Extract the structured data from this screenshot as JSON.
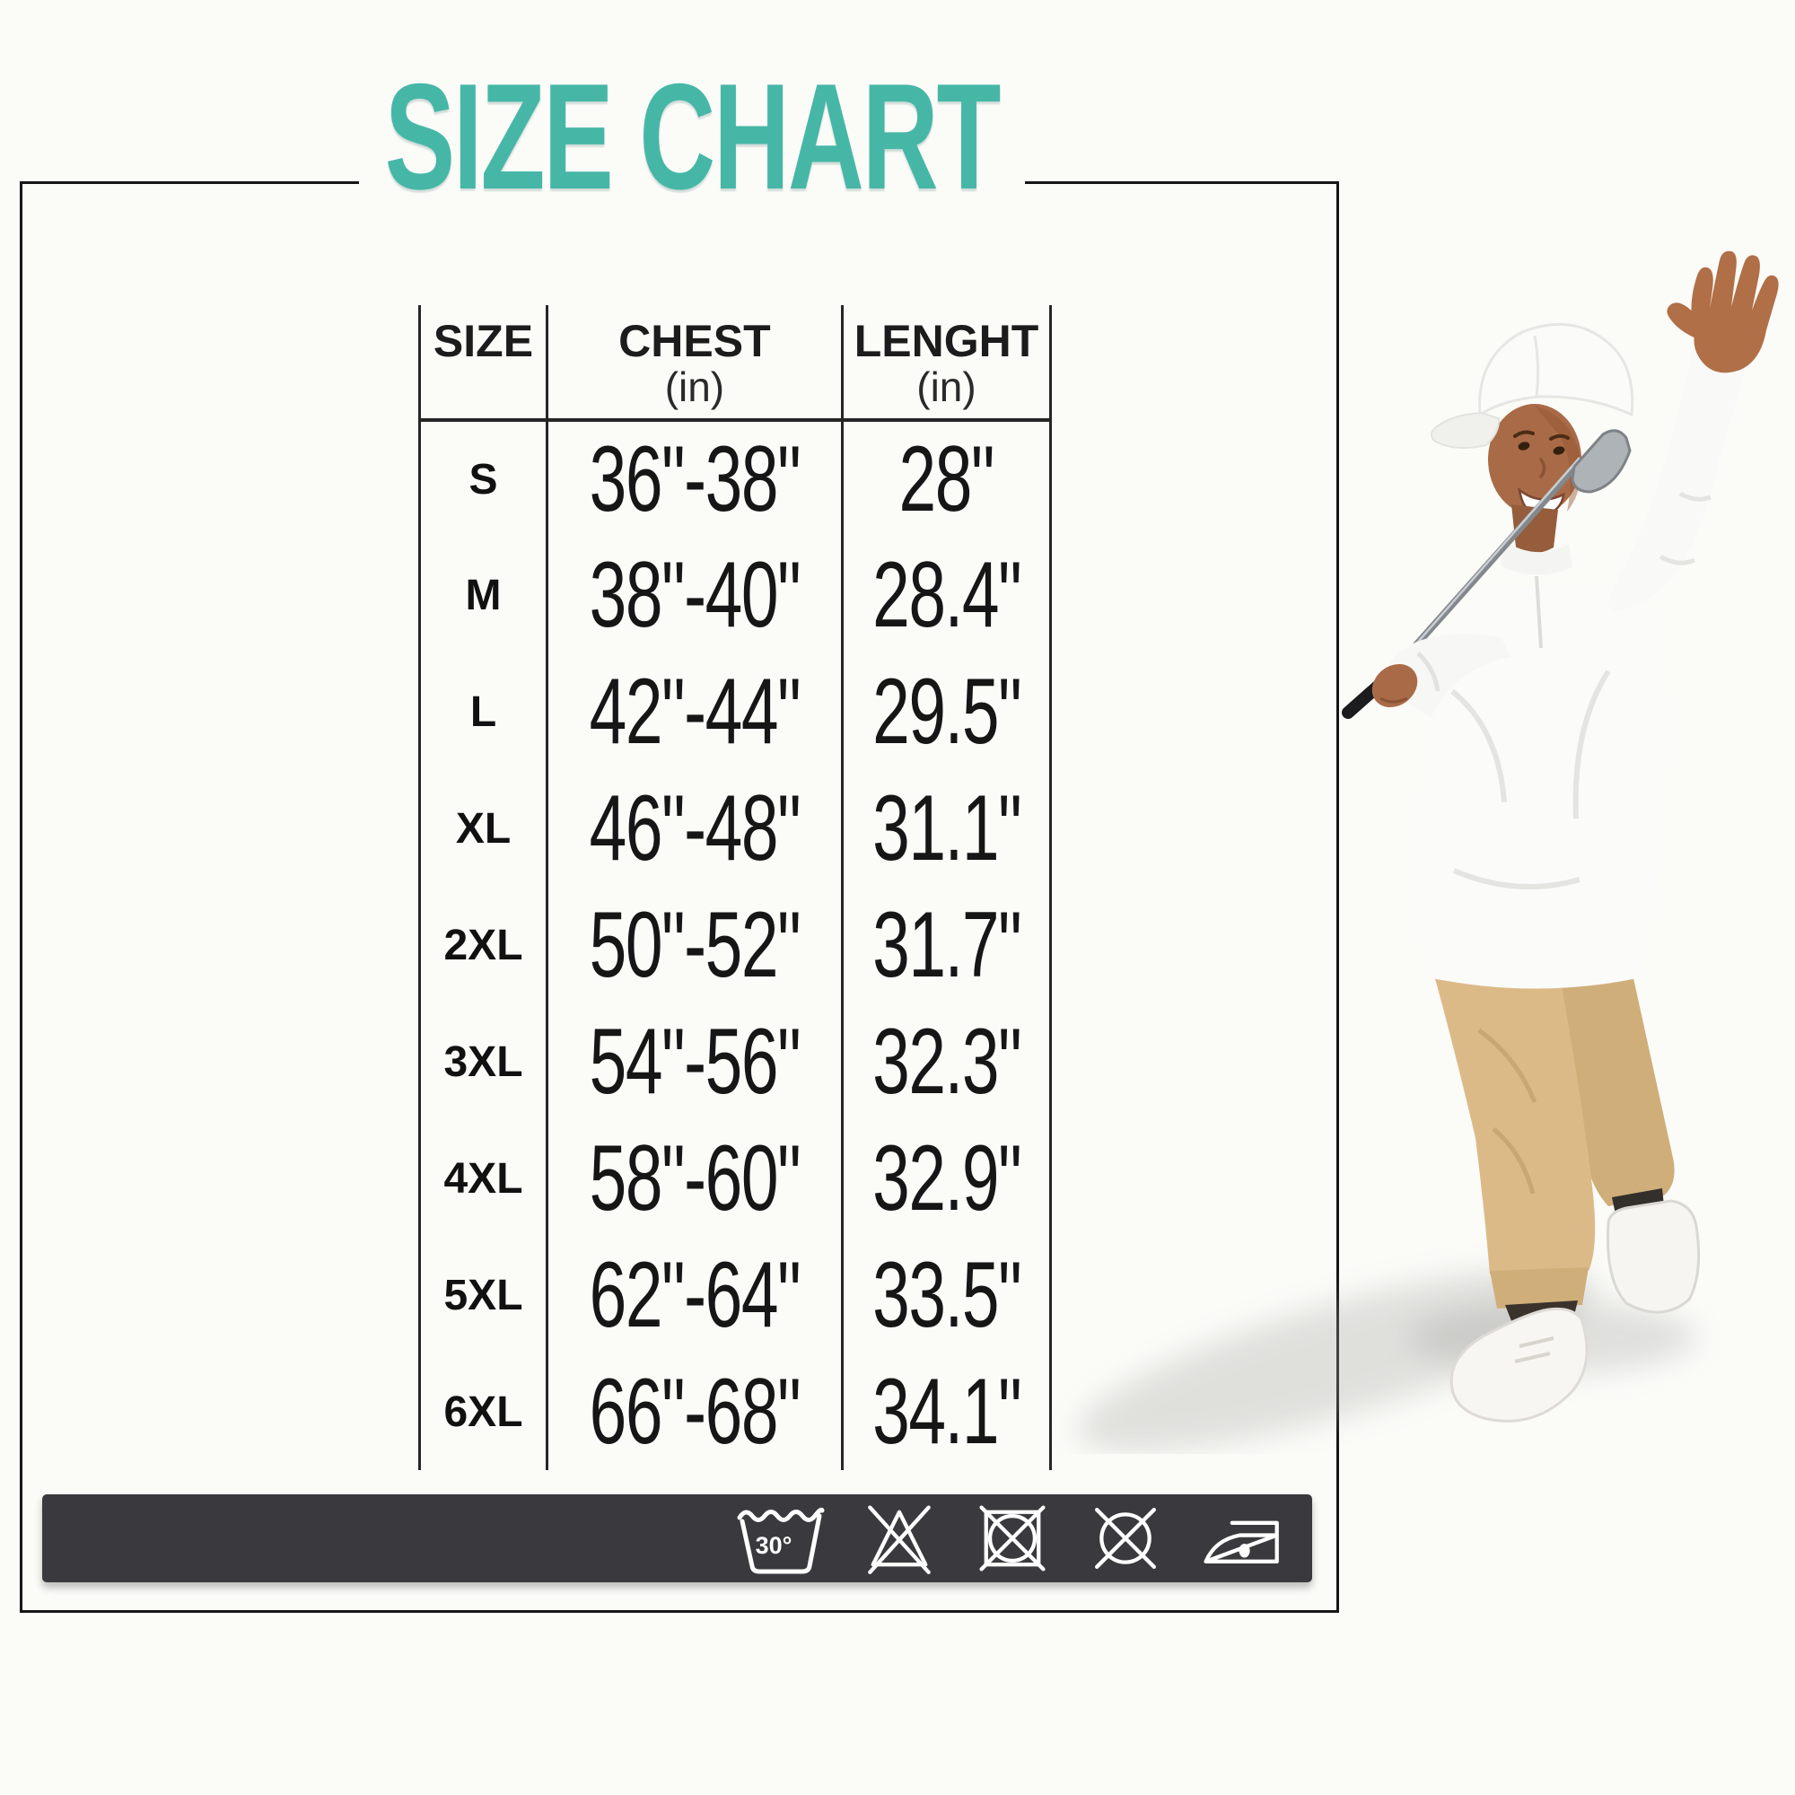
{
  "title": "SIZE CHART",
  "chart_data": {
    "type": "table",
    "title": "SIZE CHART",
    "columns": [
      "SIZE",
      "CHEST (in)",
      "LENGHT (in)"
    ],
    "rows": [
      [
        "S",
        "36\"-38\"",
        "28\""
      ],
      [
        "M",
        "38\"-40\"",
        "28.4\""
      ],
      [
        "L",
        "42\"-44\"",
        "29.5\""
      ],
      [
        "XL",
        "46\"-48\"",
        "31.1\""
      ],
      [
        "2XL",
        "50\"-52\"",
        "31.7\""
      ],
      [
        "3XL",
        "54\"-56\"",
        "32.3\""
      ],
      [
        "4XL",
        "58\"-60\"",
        "32.9\""
      ],
      [
        "5XL",
        "62\"-64\"",
        "33.5\""
      ],
      [
        "6XL",
        "66\"-68\"",
        "34.1\""
      ]
    ]
  },
  "header": {
    "col1": "SIZE",
    "col2": "CHEST",
    "col3": "LENGHT",
    "unit": "(in)"
  },
  "care_bar": {
    "wash_temp": "30°",
    "symbols": [
      "machine-wash-30-icon",
      "do-not-bleach-icon",
      "do-not-tumble-dry-icon",
      "do-not-dry-clean-icon",
      "iron-icon"
    ]
  },
  "illustration": "golfer-man-waving-with-club",
  "colors": {
    "accent_teal": "#46b7a7",
    "care_bar_background": "#3a3a3e",
    "table_lines": "#262626",
    "pants_khaki": "#dcba88"
  }
}
